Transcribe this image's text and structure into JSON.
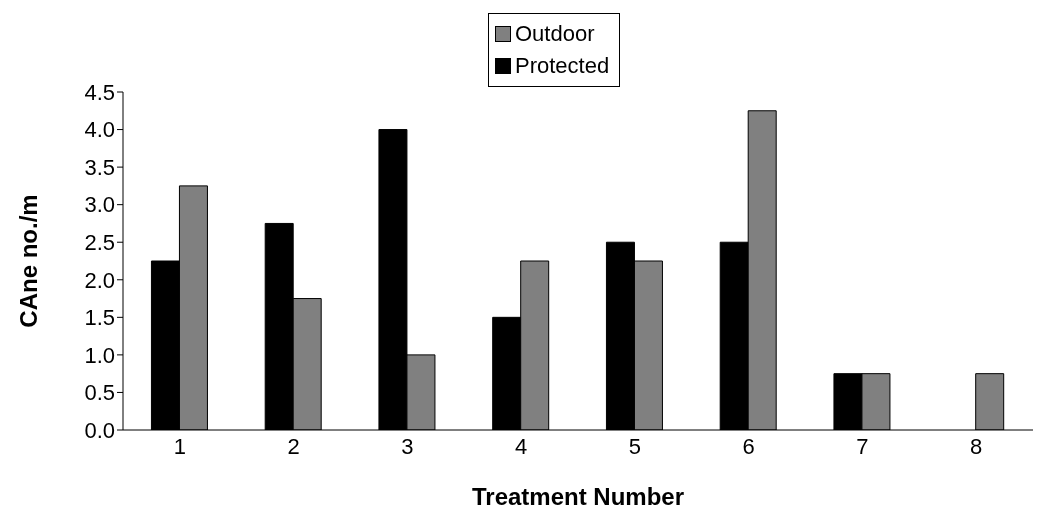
{
  "chart_data": {
    "type": "bar",
    "xlabel": "Treatment Number",
    "ylabel": "CAne no./m",
    "categories": [
      "1",
      "2",
      "3",
      "4",
      "5",
      "6",
      "7",
      "8"
    ],
    "series": [
      {
        "name": "Protected",
        "color": "#000000",
        "values": [
          2.25,
          2.75,
          4.0,
          1.5,
          2.5,
          2.5,
          0.75,
          0
        ]
      },
      {
        "name": "Outdoor",
        "color": "#808080",
        "values": [
          3.25,
          1.75,
          1.0,
          2.25,
          2.25,
          4.25,
          0.75,
          0.75
        ]
      }
    ],
    "ylim": [
      0,
      4.5
    ],
    "yticks": [
      {
        "value": 0,
        "label": "0.0"
      },
      0.5,
      {
        "value": 1,
        "label": "1.0"
      },
      1.5,
      {
        "value": 2,
        "label": "2.0"
      },
      2.5,
      {
        "value": 3,
        "label": "3.0"
      },
      3.5,
      {
        "value": 4,
        "label": "4.0"
      },
      4.5
    ],
    "legend": "top",
    "grid": false
  }
}
